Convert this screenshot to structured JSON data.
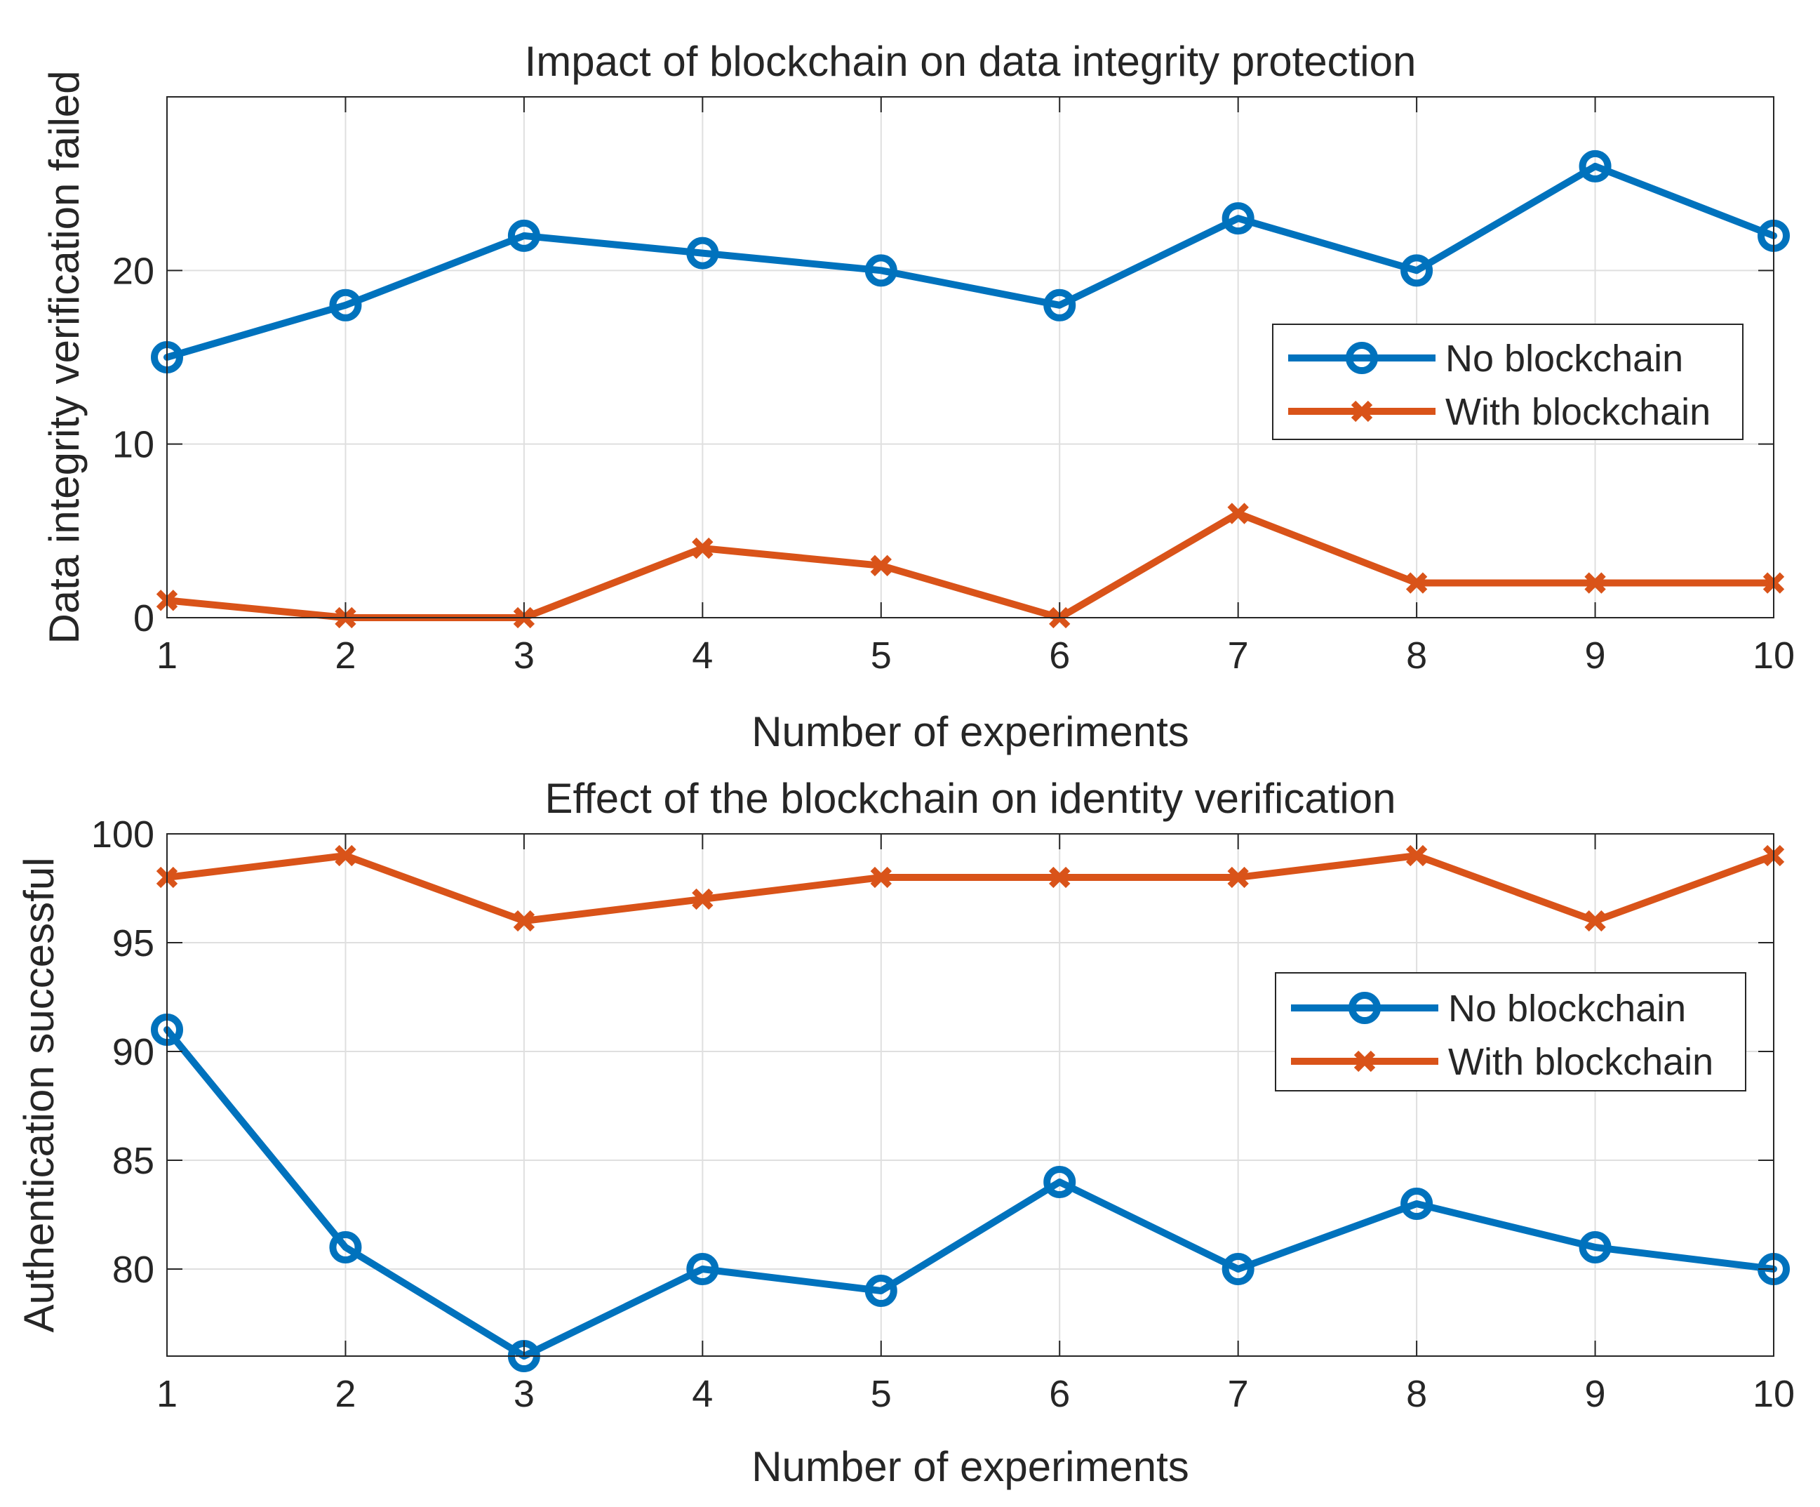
{
  "chart_data": [
    {
      "type": "line",
      "title": "Impact of blockchain on data integrity protection",
      "xlabel": "Number of experiments",
      "ylabel": "Data integrity verification failed",
      "x": [
        1,
        2,
        3,
        4,
        5,
        6,
        7,
        8,
        9,
        10
      ],
      "xlim": [
        1,
        10
      ],
      "ylim": [
        0,
        30
      ],
      "xticks": [
        1,
        2,
        3,
        4,
        5,
        6,
        7,
        8,
        9,
        10
      ],
      "yticks": [
        0,
        10,
        20
      ],
      "grid": true,
      "legend_location": "right",
      "series": [
        {
          "name": "No blockchain",
          "marker": "circle",
          "color": "#0072BD",
          "values": [
            15,
            18,
            22,
            21,
            20,
            18,
            23,
            20,
            26,
            22
          ]
        },
        {
          "name": "With blockchain",
          "marker": "x",
          "color": "#D95319",
          "values": [
            1,
            0,
            0,
            4,
            3,
            0,
            6,
            2,
            2,
            2
          ]
        }
      ]
    },
    {
      "type": "line",
      "title": "Effect of the blockchain on identity verification",
      "xlabel": "Number of experiments",
      "ylabel": "Authentication successful",
      "x": [
        1,
        2,
        3,
        4,
        5,
        6,
        7,
        8,
        9,
        10
      ],
      "xlim": [
        1,
        10
      ],
      "ylim": [
        76,
        100
      ],
      "xticks": [
        1,
        2,
        3,
        4,
        5,
        6,
        7,
        8,
        9,
        10
      ],
      "yticks": [
        80,
        85,
        90,
        95,
        100
      ],
      "grid": true,
      "legend_location": "right",
      "series": [
        {
          "name": "No blockchain",
          "marker": "circle",
          "color": "#0072BD",
          "values": [
            91,
            81,
            76,
            80,
            79,
            84,
            80,
            83,
            81,
            80
          ]
        },
        {
          "name": "With blockchain",
          "marker": "x",
          "color": "#D95319",
          "values": [
            98,
            99,
            96,
            97,
            98,
            98,
            98,
            99,
            96,
            99
          ]
        }
      ]
    }
  ]
}
